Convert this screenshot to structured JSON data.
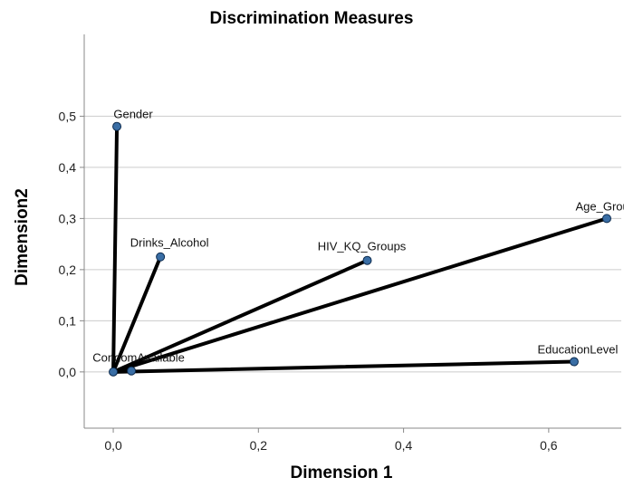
{
  "chart_data": {
    "type": "scatter",
    "title": "Discrimination Measures",
    "xlabel": "Dimension 1",
    "ylabel": "Dimension2",
    "xlim": [
      -0.04,
      0.7
    ],
    "ylim": [
      -0.11,
      0.66
    ],
    "x_ticks": [
      0.0,
      0.2,
      0.4,
      0.6
    ],
    "y_ticks": [
      0.0,
      0.1,
      0.2,
      0.3,
      0.4,
      0.5
    ],
    "x_tick_labels": [
      "0,0",
      "0,2",
      "0,4",
      "0,6"
    ],
    "y_tick_labels": [
      "0,0",
      "0,1",
      "0,2",
      "0,3",
      "0,4",
      "0,5"
    ],
    "grid": "horizontal",
    "vectors_from_origin": true,
    "points": [
      {
        "label": "Gender",
        "x": 0.005,
        "y": 0.48
      },
      {
        "label": "Drinks_Alcohol",
        "x": 0.065,
        "y": 0.225
      },
      {
        "label": "HIV_KQ_Groups",
        "x": 0.35,
        "y": 0.218
      },
      {
        "label": "Age_Groups",
        "x": 0.68,
        "y": 0.3
      },
      {
        "label": "EducationLevel",
        "x": 0.635,
        "y": 0.02
      },
      {
        "label": "CondomAvailable",
        "x": 0.025,
        "y": 0.002
      }
    ],
    "colors": {
      "point": "#3a6ea5",
      "line": "#000000",
      "grid": "#cccccc"
    }
  }
}
